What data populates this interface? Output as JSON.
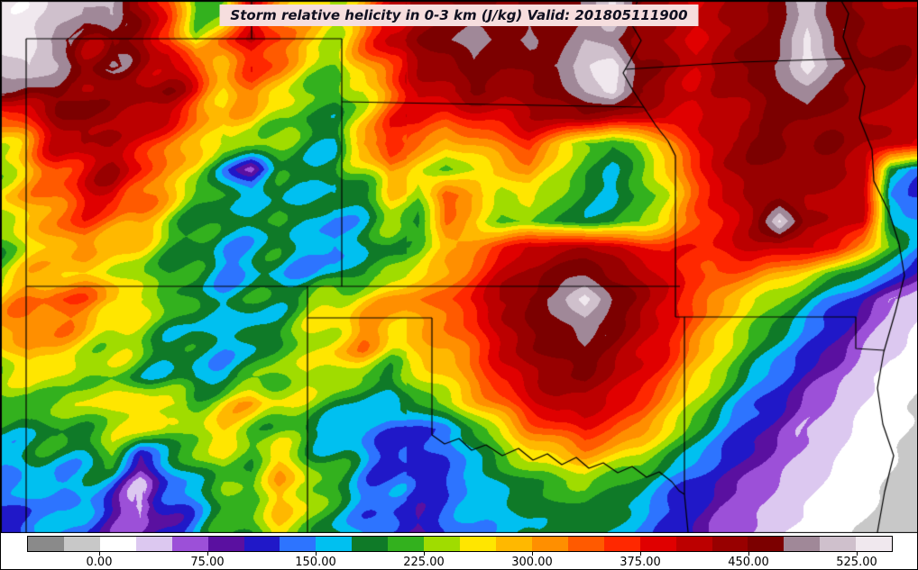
{
  "chart_data": {
    "type": "heatmap",
    "title": "Storm relative helicity in 0-3 km (J/kg) Valid: 201805111900",
    "variable": "Storm relative helicity in 0-3 km",
    "units": "J/kg",
    "valid_time": "201805111900",
    "style": {
      "title_bg": "#f6dede"
    },
    "colorbar": {
      "min": -50,
      "max": 550,
      "interval": 25,
      "tick_values": [
        0,
        75,
        150,
        225,
        300,
        375,
        450,
        525
      ],
      "tick_labels": [
        "0.00",
        "75.00",
        "150.00",
        "225.00",
        "300.00",
        "375.00",
        "450.00",
        "525.00"
      ],
      "colors": [
        "#8a8a8a",
        "#c8c8c8",
        "#ffffff",
        "#dcc8f0",
        "#9c50d8",
        "#5a10a0",
        "#2018c8",
        "#2d74ff",
        "#00c0f0",
        "#0f7a28",
        "#33b11e",
        "#a0dc00",
        "#ffe600",
        "#ffb800",
        "#ff8f00",
        "#ff5a00",
        "#ff2800",
        "#e00000",
        "#bc0000",
        "#980000",
        "#7c0000",
        "#a08898",
        "#cfc0cc",
        "#f0e8ee"
      ]
    },
    "grid": {
      "nx": 34,
      "ny": 21,
      "x_range": [
        0,
        1017
      ],
      "y_range": [
        14,
        590
      ],
      "values": [
        [
          535,
          545,
          520,
          495,
          510,
          430,
          360,
          210,
          230,
          380,
          320,
          260,
          250,
          300,
          390,
          430,
          450,
          465,
          445,
          470,
          450,
          480,
          530,
          450,
          430,
          400,
          420,
          440,
          455,
          520,
          460,
          440,
          430,
          420
        ],
        [
          530,
          545,
          480,
          430,
          460,
          430,
          380,
          240,
          330,
          400,
          360,
          280,
          260,
          320,
          410,
          450,
          470,
          490,
          470,
          480,
          460,
          500,
          480,
          440,
          420,
          390,
          430,
          450,
          470,
          535,
          470,
          450,
          445,
          430
        ],
        [
          515,
          530,
          500,
          450,
          470,
          440,
          420,
          350,
          300,
          370,
          330,
          250,
          230,
          280,
          380,
          420,
          440,
          470,
          450,
          460,
          480,
          520,
          545,
          460,
          430,
          410,
          440,
          460,
          480,
          540,
          480,
          460,
          450,
          440
        ],
        [
          480,
          460,
          470,
          440,
          420,
          450,
          430,
          380,
          280,
          320,
          280,
          220,
          200,
          240,
          330,
          400,
          430,
          450,
          430,
          440,
          460,
          500,
          540,
          450,
          420,
          400,
          420,
          450,
          470,
          490,
          460,
          440,
          430,
          420
        ],
        [
          320,
          380,
          430,
          460,
          440,
          420,
          390,
          340,
          260,
          290,
          240,
          200,
          190,
          260,
          360,
          390,
          360,
          380,
          400,
          420,
          430,
          440,
          410,
          410,
          410,
          390,
          410,
          430,
          450,
          460,
          440,
          430,
          420,
          410
        ],
        [
          260,
          320,
          400,
          430,
          410,
          380,
          340,
          300,
          230,
          250,
          210,
          190,
          180,
          300,
          380,
          330,
          280,
          300,
          330,
          360,
          300,
          220,
          200,
          230,
          300,
          380,
          430,
          450,
          460,
          440,
          450,
          430,
          420,
          400
        ],
        [
          240,
          280,
          360,
          400,
          420,
          380,
          300,
          260,
          150,
          80,
          180,
          200,
          170,
          240,
          320,
          260,
          220,
          250,
          280,
          310,
          260,
          200,
          180,
          210,
          280,
          360,
          420,
          440,
          450,
          430,
          440,
          420,
          180,
          140
        ],
        [
          260,
          300,
          340,
          380,
          400,
          350,
          280,
          220,
          190,
          160,
          190,
          180,
          160,
          200,
          260,
          230,
          350,
          300,
          240,
          260,
          220,
          190,
          170,
          200,
          260,
          340,
          400,
          430,
          440,
          420,
          430,
          410,
          150,
          120
        ],
        [
          240,
          280,
          320,
          350,
          330,
          300,
          240,
          200,
          170,
          180,
          200,
          170,
          150,
          180,
          220,
          200,
          320,
          280,
          220,
          230,
          200,
          180,
          190,
          220,
          280,
          340,
          390,
          420,
          530,
          430,
          420,
          400,
          190,
          150
        ],
        [
          220,
          260,
          290,
          310,
          280,
          260,
          220,
          190,
          160,
          170,
          180,
          160,
          140,
          170,
          200,
          220,
          280,
          320,
          360,
          400,
          420,
          430,
          410,
          380,
          360,
          370,
          390,
          410,
          420,
          400,
          380,
          300,
          220,
          140
        ],
        [
          240,
          270,
          300,
          280,
          250,
          230,
          200,
          180,
          150,
          160,
          170,
          150,
          160,
          190,
          230,
          260,
          300,
          350,
          400,
          440,
          460,
          470,
          450,
          420,
          390,
          360,
          340,
          330,
          300,
          260,
          220,
          180,
          140,
          90
        ],
        [
          280,
          320,
          350,
          330,
          300,
          260,
          220,
          200,
          170,
          180,
          200,
          220,
          250,
          280,
          300,
          320,
          340,
          380,
          430,
          460,
          480,
          540,
          470,
          440,
          400,
          350,
          300,
          260,
          220,
          180,
          140,
          100,
          60,
          30
        ],
        [
          300,
          340,
          320,
          290,
          260,
          230,
          200,
          180,
          160,
          170,
          190,
          230,
          270,
          310,
          280,
          300,
          320,
          360,
          420,
          450,
          470,
          490,
          460,
          430,
          380,
          330,
          280,
          230,
          190,
          150,
          110,
          70,
          40,
          20
        ],
        [
          260,
          300,
          280,
          260,
          240,
          220,
          190,
          170,
          160,
          180,
          210,
          240,
          280,
          300,
          260,
          280,
          300,
          340,
          400,
          440,
          460,
          470,
          440,
          410,
          370,
          310,
          250,
          200,
          160,
          120,
          90,
          50,
          25,
          10
        ],
        [
          220,
          260,
          240,
          230,
          220,
          200,
          180,
          160,
          170,
          200,
          230,
          260,
          240,
          220,
          200,
          240,
          280,
          320,
          380,
          420,
          440,
          450,
          420,
          390,
          340,
          280,
          220,
          170,
          130,
          90,
          60,
          35,
          15,
          5
        ],
        [
          200,
          230,
          220,
          240,
          260,
          280,
          250,
          230,
          260,
          290,
          260,
          230,
          200,
          180,
          160,
          200,
          240,
          280,
          340,
          390,
          420,
          420,
          390,
          360,
          300,
          240,
          180,
          140,
          100,
          70,
          45,
          25,
          10,
          0
        ],
        [
          180,
          200,
          190,
          210,
          240,
          260,
          230,
          250,
          270,
          240,
          210,
          180,
          160,
          140,
          130,
          120,
          140,
          200,
          260,
          320,
          360,
          380,
          350,
          320,
          260,
          200,
          150,
          110,
          80,
          55,
          35,
          18,
          5,
          -5
        ],
        [
          160,
          180,
          170,
          190,
          220,
          120,
          170,
          220,
          250,
          220,
          260,
          220,
          180,
          150,
          120,
          110,
          130,
          170,
          220,
          260,
          280,
          300,
          280,
          250,
          200,
          160,
          120,
          90,
          65,
          45,
          28,
          12,
          0,
          -10
        ],
        [
          140,
          160,
          150,
          170,
          130,
          60,
          120,
          180,
          220,
          200,
          300,
          260,
          200,
          160,
          130,
          115,
          125,
          150,
          180,
          200,
          220,
          230,
          210,
          180,
          150,
          120,
          95,
          70,
          50,
          32,
          18,
          8,
          -5,
          -15
        ],
        [
          120,
          140,
          160,
          150,
          100,
          40,
          100,
          160,
          200,
          230,
          290,
          240,
          190,
          150,
          120,
          110,
          130,
          160,
          170,
          180,
          190,
          200,
          180,
          160,
          130,
          100,
          75,
          55,
          38,
          25,
          12,
          3,
          -10,
          -20
        ],
        [
          110,
          130,
          150,
          140,
          90,
          60,
          110,
          150,
          190,
          220,
          260,
          220,
          180,
          140,
          110,
          100,
          120,
          150,
          160,
          170,
          180,
          190,
          170,
          150,
          120,
          90,
          65,
          45,
          30,
          18,
          8,
          -2,
          -15,
          -25
        ]
      ]
    },
    "state_borders": [
      [
        [
          28,
          42
        ],
        [
          28,
          590
        ]
      ],
      [
        [
          28,
          42
        ],
        [
          378,
          42
        ]
      ],
      [
        [
          278,
          0
        ],
        [
          278,
          42
        ]
      ],
      [
        [
          378,
          42
        ],
        [
          378,
          317
        ]
      ],
      [
        [
          28,
          317
        ],
        [
          753,
          317
        ]
      ],
      [
        [
          378,
          112
        ],
        [
          713,
          118
        ]
      ],
      [
        [
          706,
          0
        ],
        [
          697,
          22
        ],
        [
          710,
          44
        ],
        [
          698,
          66
        ],
        [
          690,
          80
        ],
        [
          700,
          98
        ],
        [
          713,
          118
        ]
      ],
      [
        [
          713,
          118
        ],
        [
          726,
          138
        ],
        [
          740,
          156
        ],
        [
          748,
          172
        ],
        [
          748,
          351
        ]
      ],
      [
        [
          748,
          351
        ],
        [
          758,
          351
        ],
        [
          758,
          548
        ],
        [
          762,
          590
        ]
      ],
      [
        [
          692,
          76
        ],
        [
          820,
          68
        ],
        [
          943,
          64
        ]
      ],
      [
        [
          932,
          0
        ],
        [
          940,
          14
        ],
        [
          934,
          40
        ],
        [
          943,
          64
        ],
        [
          958,
          95
        ],
        [
          952,
          130
        ],
        [
          966,
          165
        ],
        [
          968,
          200
        ],
        [
          985,
          235
        ],
        [
          996,
          270
        ],
        [
          1002,
          305
        ],
        [
          992,
          345
        ],
        [
          979,
          390
        ],
        [
          972,
          430
        ],
        [
          978,
          470
        ],
        [
          990,
          505
        ],
        [
          980,
          545
        ],
        [
          972,
          590
        ]
      ],
      [
        [
          758,
          351
        ],
        [
          948,
          351
        ],
        [
          948,
          386
        ],
        [
          979,
          388
        ]
      ],
      [
        [
          340,
          317
        ],
        [
          340,
          590
        ]
      ],
      [
        [
          340,
          352
        ],
        [
          478,
          352
        ]
      ],
      [
        [
          478,
          352
        ],
        [
          478,
          482
        ]
      ],
      [
        [
          478,
          482
        ],
        [
          492,
          492
        ],
        [
          508,
          486
        ],
        [
          522,
          499
        ],
        [
          538,
          493
        ],
        [
          556,
          505
        ],
        [
          574,
          497
        ],
        [
          590,
          510
        ],
        [
          606,
          503
        ],
        [
          622,
          515
        ],
        [
          638,
          507
        ],
        [
          652,
          519
        ],
        [
          668,
          513
        ],
        [
          684,
          524
        ],
        [
          700,
          517
        ],
        [
          716,
          529
        ],
        [
          730,
          523
        ],
        [
          744,
          534
        ],
        [
          752,
          544
        ],
        [
          758,
          548
        ]
      ]
    ]
  }
}
